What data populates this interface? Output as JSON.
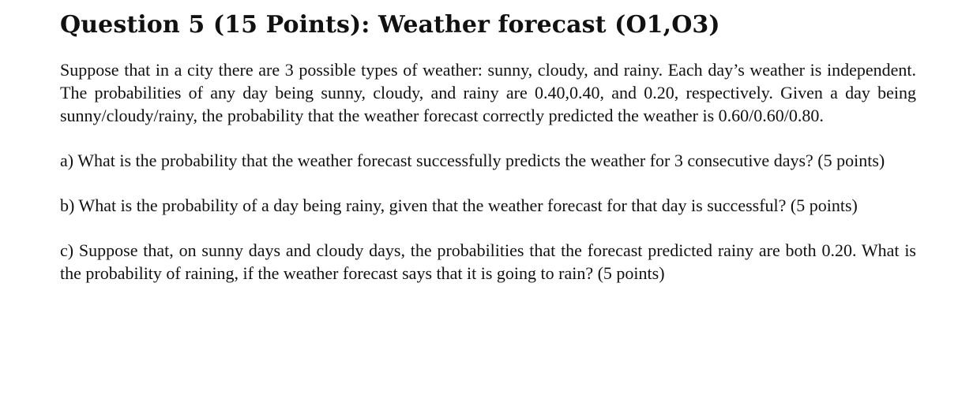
{
  "document": {
    "title": "Question 5 (15 Points): Weather forecast (O1,O3)",
    "intro": "Suppose that in a city there are 3 possible types of weather: sunny, cloudy, and rainy. Each day’s weather is independent. The probabilities of any day being sunny, cloudy, and rainy are 0.40,0.40, and 0.20, respectively. Given a day being sunny/cloudy/rainy, the probability that the weather forecast correctly predicted the weather is 0.60/0.60/0.80.",
    "questions": [
      {
        "text": "a) What is the probability that the weather forecast successfully predicts the weather for 3 consecutive days? (5 points)"
      },
      {
        "text": "b) What is the probability of a day being rainy, given that the weather forecast for that day is successful? (5 points)"
      },
      {
        "text": "c) Suppose that, on sunny days and cloudy days, the probabilities that the forecast predicted rainy are both 0.20. What is the probability of raining, if the weather forecast says that it is going to rain? (5 points)"
      }
    ]
  }
}
